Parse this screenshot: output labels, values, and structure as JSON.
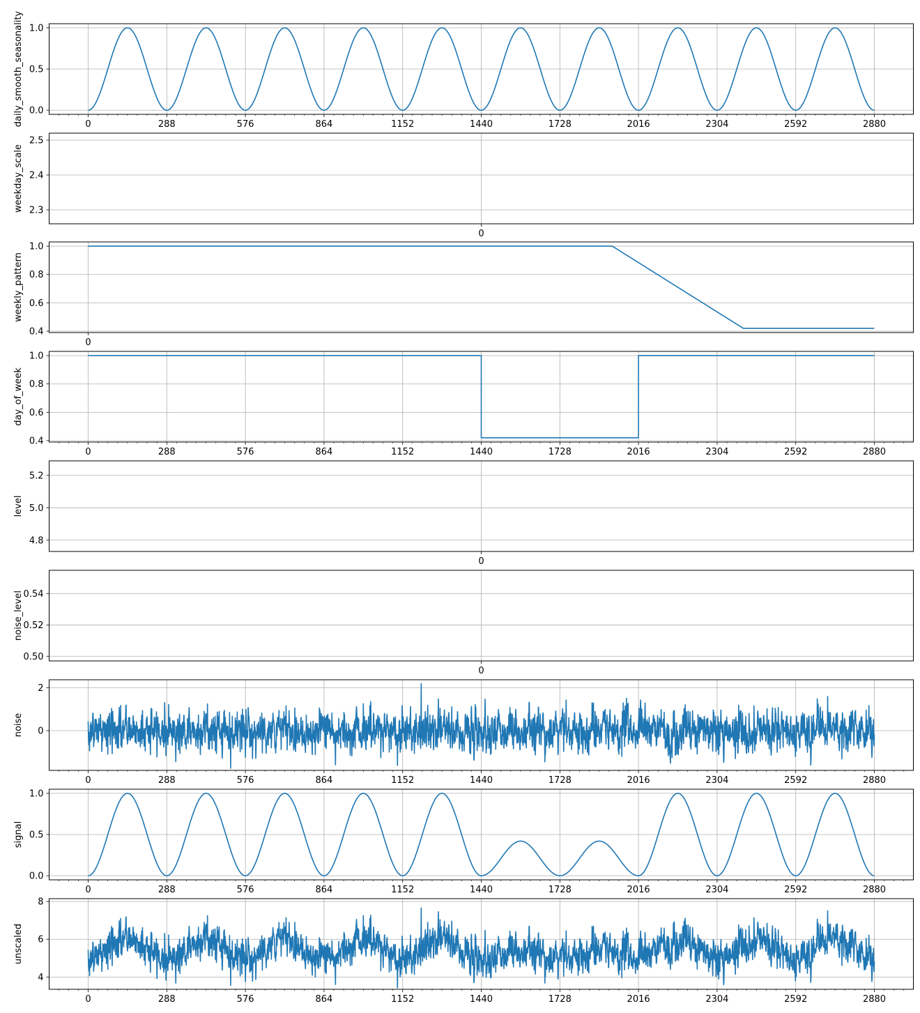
{
  "chart_data": [
    {
      "type": "line",
      "ylabel": "daily_smooth_seasonality",
      "ylim": [
        -0.05,
        1.05
      ],
      "yticks": [
        0.0,
        0.5,
        1.0
      ],
      "ytick_labels": [
        "0.0",
        "0.5",
        "1.0"
      ],
      "xlim": [
        -144,
        3024
      ],
      "xticks": [
        0,
        288,
        576,
        864,
        1152,
        1440,
        1728,
        2016,
        2304,
        2592,
        2880
      ],
      "xtick_labels": [
        "0",
        "288",
        "576",
        "864",
        "1152",
        "1440",
        "1728",
        "2016",
        "2304",
        "2592",
        "2880"
      ],
      "grid": true,
      "color": "#1f77b4",
      "series": [
        {
          "x_range": [
            0,
            2880
          ],
          "kind": "daily_cosine",
          "period": 288,
          "min": 0.0,
          "max": 1.0
        }
      ]
    },
    {
      "type": "line",
      "ylabel": "weekday_scale",
      "ylim": [
        2.26,
        2.52
      ],
      "yticks": [
        2.3,
        2.4,
        2.5
      ],
      "ytick_labels": [
        "2.3",
        "2.4",
        "2.5"
      ],
      "xlim": [
        -0.055,
        0.055
      ],
      "xticks": [
        0
      ],
      "xtick_labels": [
        "0"
      ],
      "grid": true,
      "color": "#1f77b4",
      "series": []
    },
    {
      "type": "line",
      "ylabel": "weekly_pattern",
      "ylim": [
        0.39,
        1.03
      ],
      "yticks": [
        0.4,
        0.6,
        0.8,
        1.0
      ],
      "ytick_labels": [
        "0.4",
        "0.6",
        "0.8",
        "1.0"
      ],
      "xlim": [
        -144,
        3024
      ],
      "xticks": [
        0
      ],
      "xtick_labels": [
        "0"
      ],
      "grid": true,
      "color": "#1f77b4",
      "series": [
        {
          "x": [
            0,
            1920,
            2400,
            2880
          ],
          "y": [
            1.0,
            1.0,
            0.42,
            0.42
          ]
        }
      ]
    },
    {
      "type": "line",
      "ylabel": "day_of_week",
      "ylim": [
        0.39,
        1.03
      ],
      "yticks": [
        0.4,
        0.6,
        0.8,
        1.0
      ],
      "ytick_labels": [
        "0.4",
        "0.6",
        "0.8",
        "1.0"
      ],
      "xlim": [
        -144,
        3024
      ],
      "xticks": [
        0,
        288,
        576,
        864,
        1152,
        1440,
        1728,
        2016,
        2304,
        2592,
        2880
      ],
      "xtick_labels": [
        "0",
        "288",
        "576",
        "864",
        "1152",
        "1440",
        "1728",
        "2016",
        "2304",
        "2592",
        "2880"
      ],
      "grid": true,
      "color": "#1f77b4",
      "series": [
        {
          "x": [
            0,
            1440,
            1440,
            2016,
            2016,
            2880
          ],
          "y": [
            1.0,
            1.0,
            0.42,
            0.42,
            1.0,
            1.0
          ]
        }
      ]
    },
    {
      "type": "line",
      "ylabel": "level",
      "ylim": [
        4.73,
        5.29
      ],
      "yticks": [
        4.8,
        5.0,
        5.2
      ],
      "ytick_labels": [
        "4.8",
        "5.0",
        "5.2"
      ],
      "xlim": [
        -0.055,
        0.055
      ],
      "xticks": [
        0
      ],
      "xtick_labels": [
        "0"
      ],
      "grid": true,
      "color": "#1f77b4",
      "series": []
    },
    {
      "type": "line",
      "ylabel": "noise_level",
      "ylim": [
        0.497,
        0.555
      ],
      "yticks": [
        0.5,
        0.52,
        0.54
      ],
      "ytick_labels": [
        "0.50",
        "0.52",
        "0.54"
      ],
      "xlim": [
        -0.055,
        0.055
      ],
      "xticks": [
        0
      ],
      "xtick_labels": [
        "0"
      ],
      "grid": true,
      "color": "#1f77b4",
      "series": []
    },
    {
      "type": "line",
      "ylabel": "noise",
      "ylim": [
        -1.85,
        2.37
      ],
      "yticks": [
        0,
        2
      ],
      "ytick_labels": [
        "0",
        "2"
      ],
      "xlim": [
        -144,
        3024
      ],
      "xticks": [
        0,
        288,
        576,
        864,
        1152,
        1440,
        1728,
        2016,
        2304,
        2592,
        2880
      ],
      "xtick_labels": [
        "0",
        "288",
        "576",
        "864",
        "1152",
        "1440",
        "1728",
        "2016",
        "2304",
        "2592",
        "2880"
      ],
      "grid": true,
      "color": "#1f77b4",
      "series": [
        {
          "x_range": [
            0,
            2880
          ],
          "kind": "gaussian_noise",
          "mean": 0.0,
          "std": 0.5,
          "min": -1.75,
          "max": 2.2,
          "peak_x": 1220
        }
      ]
    },
    {
      "type": "line",
      "ylabel": "signal",
      "ylim": [
        -0.05,
        1.05
      ],
      "yticks": [
        0.0,
        0.5,
        1.0
      ],
      "ytick_labels": [
        "0.0",
        "0.5",
        "1.0"
      ],
      "xlim": [
        -144,
        3024
      ],
      "xticks": [
        0,
        288,
        576,
        864,
        1152,
        1440,
        1728,
        2016,
        2304,
        2592,
        2880
      ],
      "xtick_labels": [
        "0",
        "288",
        "576",
        "864",
        "1152",
        "1440",
        "1728",
        "2016",
        "2304",
        "2592",
        "2880"
      ],
      "grid": true,
      "color": "#1f77b4",
      "series": [
        {
          "x_range": [
            0,
            2880
          ],
          "kind": "daily_cosine_times_day_of_week",
          "period": 288,
          "reduced_days_x": [
            1440,
            2016
          ],
          "reduced_amplitude": 0.42
        }
      ]
    },
    {
      "type": "line",
      "ylabel": "unscaled",
      "ylim": [
        3.35,
        8.15
      ],
      "yticks": [
        4,
        6,
        8
      ],
      "ytick_labels": [
        "4",
        "6",
        "8"
      ],
      "xlim": [
        -144,
        3024
      ],
      "xticks": [
        0,
        288,
        576,
        864,
        1152,
        1440,
        1728,
        2016,
        2304,
        2592,
        2880
      ],
      "xtick_labels": [
        "0",
        "288",
        "576",
        "864",
        "1152",
        "1440",
        "1728",
        "2016",
        "2304",
        "2592",
        "2880"
      ],
      "grid": true,
      "color": "#1f77b4",
      "series": [
        {
          "x_range": [
            0,
            2880
          ],
          "kind": "level_plus_signal_plus_noise",
          "level": 5.0,
          "min": 3.5,
          "max": 7.9
        }
      ]
    }
  ]
}
